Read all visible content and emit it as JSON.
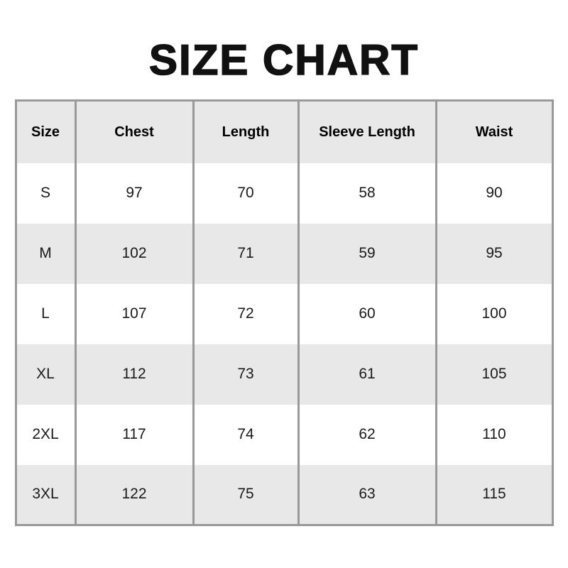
{
  "page": {
    "title": "SIZE CHART"
  },
  "colors": {
    "background": "#ffffff",
    "header_bg": "#e8e8e8",
    "alt_row_bg": "#e8e8e8",
    "border": "#999999",
    "title_text": "#111111",
    "cell_text": "#1a1a1a"
  },
  "chart_data": {
    "type": "table",
    "title": "SIZE CHART",
    "columns": [
      "Size",
      "Chest",
      "Length",
      "Sleeve Length",
      "Waist"
    ],
    "rows": [
      [
        "S",
        "97",
        "70",
        "58",
        "90"
      ],
      [
        "M",
        "102",
        "71",
        "59",
        "95"
      ],
      [
        "L",
        "107",
        "72",
        "60",
        "100"
      ],
      [
        "XL",
        "112",
        "73",
        "61",
        "105"
      ],
      [
        "2XL",
        "117",
        "74",
        "62",
        "110"
      ],
      [
        "3XL",
        "122",
        "75",
        "63",
        "115"
      ]
    ],
    "layout": {
      "header_background": "gray",
      "row_striping": "white/gray alternating starting white",
      "inner_borders": "vertical only",
      "outer_border": true
    }
  }
}
